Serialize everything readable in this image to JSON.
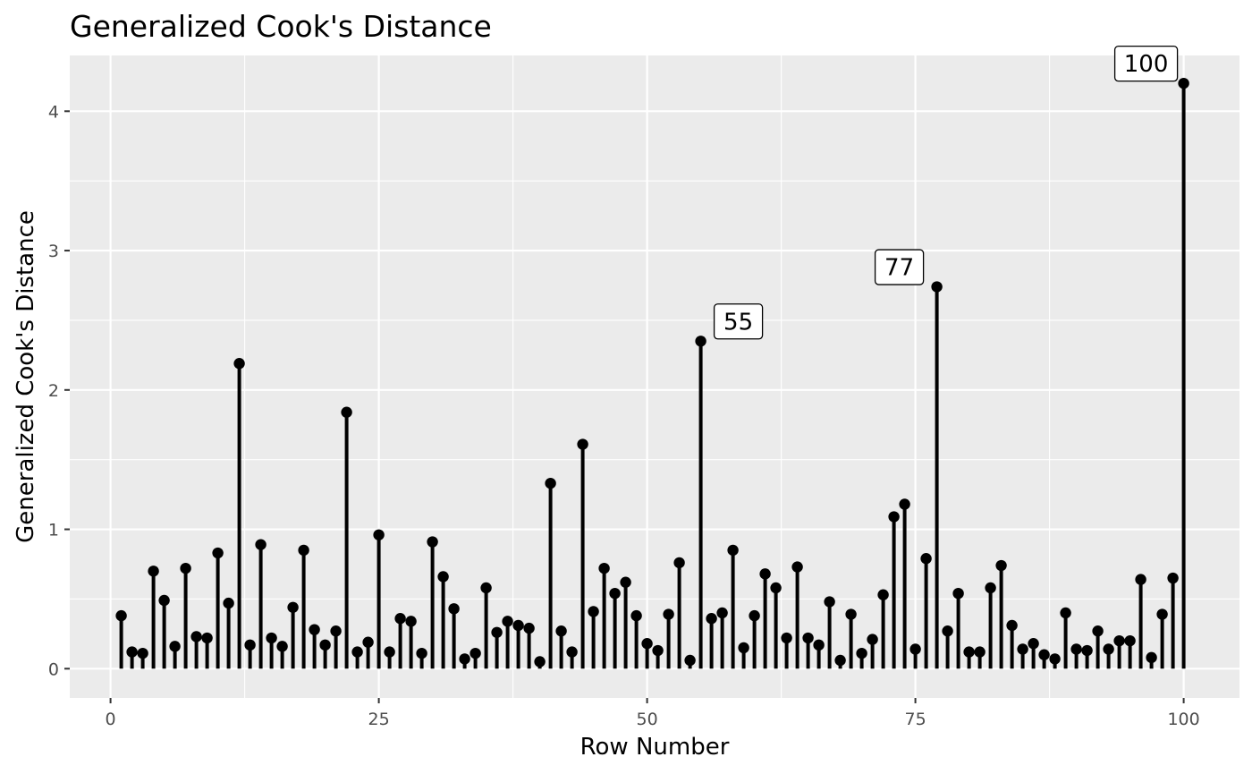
{
  "chart_data": {
    "type": "lollipop",
    "title": "Generalized Cook's Distance",
    "xlabel": "Row Number",
    "ylabel": "Generalized Cook's Distance",
    "xlim": [
      -3.8,
      105.2
    ],
    "ylim": [
      -0.21,
      4.4
    ],
    "x_ticks": [
      0,
      25,
      50,
      75,
      100
    ],
    "x_tick_labels": [
      "0",
      "25",
      "50",
      "75",
      "100"
    ],
    "y_ticks": [
      0,
      1,
      2,
      3,
      4
    ],
    "y_tick_labels": [
      "0",
      "1",
      "2",
      "3",
      "4"
    ],
    "grid": true,
    "colors": {
      "panel": "#ebebeb",
      "grid": "#ffffff",
      "mark": "#000000",
      "tick": "#4d4d4d"
    },
    "x": [
      1,
      2,
      3,
      4,
      5,
      6,
      7,
      8,
      9,
      10,
      11,
      12,
      13,
      14,
      15,
      16,
      17,
      18,
      19,
      20,
      21,
      22,
      23,
      24,
      25,
      26,
      27,
      28,
      29,
      30,
      31,
      32,
      33,
      34,
      35,
      36,
      37,
      38,
      39,
      40,
      41,
      42,
      43,
      44,
      45,
      46,
      47,
      48,
      49,
      50,
      51,
      52,
      53,
      54,
      55,
      56,
      57,
      58,
      59,
      60,
      61,
      62,
      63,
      64,
      65,
      66,
      67,
      68,
      69,
      70,
      71,
      72,
      73,
      74,
      75,
      76,
      77,
      78,
      79,
      80,
      81,
      82,
      83,
      84,
      85,
      86,
      87,
      88,
      89,
      90,
      91,
      92,
      93,
      94,
      95,
      96,
      97,
      98,
      99,
      100
    ],
    "values": [
      0.38,
      0.12,
      0.11,
      0.7,
      0.49,
      0.16,
      0.72,
      0.23,
      0.22,
      0.83,
      0.47,
      2.19,
      0.17,
      0.89,
      0.22,
      0.16,
      0.44,
      0.85,
      0.28,
      0.17,
      0.27,
      1.84,
      0.12,
      0.19,
      0.96,
      0.12,
      0.36,
      0.34,
      0.11,
      0.91,
      0.66,
      0.43,
      0.07,
      0.11,
      0.58,
      0.26,
      0.34,
      0.31,
      0.29,
      0.05,
      1.33,
      0.27,
      0.12,
      1.61,
      0.41,
      0.72,
      0.54,
      0.62,
      0.38,
      0.18,
      0.13,
      0.39,
      0.76,
      0.06,
      2.35,
      0.36,
      0.4,
      0.85,
      0.15,
      0.38,
      0.68,
      0.58,
      0.22,
      0.73,
      0.22,
      0.17,
      0.48,
      0.06,
      0.39,
      0.11,
      0.21,
      0.53,
      1.09,
      1.18,
      0.14,
      0.79,
      2.74,
      0.27,
      0.54,
      0.12,
      0.12,
      0.58,
      0.74,
      0.31,
      0.14,
      0.18,
      0.1,
      0.07,
      0.4,
      0.14,
      0.13,
      0.27,
      0.14,
      0.2,
      0.2,
      0.64,
      0.08,
      0.39,
      0.65,
      4.2
    ],
    "annotations": [
      {
        "x": 55,
        "label": "55",
        "side": "right"
      },
      {
        "x": 77,
        "label": "77",
        "side": "left"
      },
      {
        "x": 100,
        "label": "100",
        "side": "left"
      }
    ]
  }
}
